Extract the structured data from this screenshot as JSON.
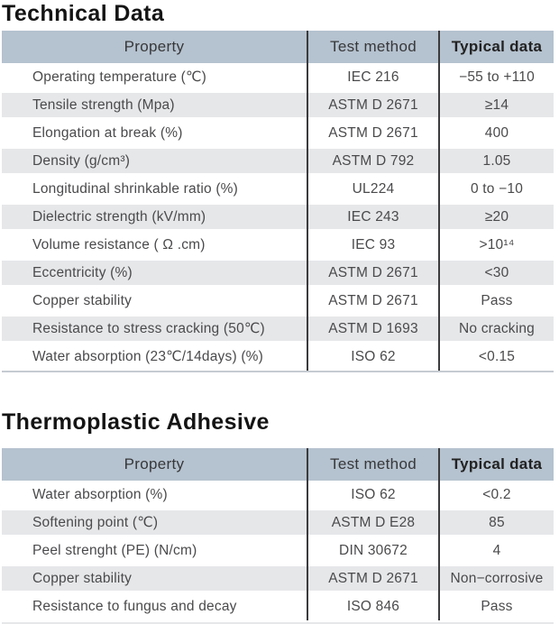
{
  "colors": {
    "header_bg": "#b5c2cf",
    "alt_row_band": "#e6e7e9",
    "row_bg": "#ffffff",
    "divider": "#3b3b3d",
    "text": "#4a4a4c",
    "title": "#141414",
    "table_bottom_hairline": "#c6cbd1"
  },
  "sections": [
    {
      "title": "Technical Data",
      "columns": [
        "Property",
        "Test method",
        "Typical data"
      ],
      "rows": [
        {
          "property": "Operating temperature (℃)",
          "test_method": "IEC 216",
          "typical_data": "−55 to +110"
        },
        {
          "property": "Tensile strength (Mpa)",
          "test_method": "ASTM D 2671",
          "typical_data": "≥14"
        },
        {
          "property": "Elongation at break (%)",
          "test_method": "ASTM D 2671",
          "typical_data": "400"
        },
        {
          "property": "Density (g/cm³)",
          "test_method": "ASTM D 792",
          "typical_data": "1.05"
        },
        {
          "property": "Longitudinal shrinkable ratio (%)",
          "test_method": "UL224",
          "typical_data": "0 to −10"
        },
        {
          "property": "Dielectric strength (kV/mm)",
          "test_method": "IEC 243",
          "typical_data": "≥20"
        },
        {
          "property": "Volume resistance ( Ω .cm)",
          "test_method": "IEC 93",
          "typical_data": ">10¹⁴"
        },
        {
          "property": "Eccentricity (%)",
          "test_method": "ASTM D 2671",
          "typical_data": "<30"
        },
        {
          "property": "Copper stability",
          "test_method": "ASTM D 2671",
          "typical_data": "Pass"
        },
        {
          "property": "Resistance to stress cracking (50℃)",
          "test_method": "ASTM D 1693",
          "typical_data": "No cracking"
        },
        {
          "property": "Water absorption (23℃/14days) (%)",
          "test_method": "ISO 62",
          "typical_data": "<0.15"
        }
      ]
    },
    {
      "title": "Thermoplastic Adhesive",
      "columns": [
        "Property",
        "Test method",
        "Typical data"
      ],
      "rows": [
        {
          "property": "Water absorption (%)",
          "test_method": "ISO 62",
          "typical_data": "<0.2"
        },
        {
          "property": "Softening point (℃)",
          "test_method": "ASTM D E28",
          "typical_data": "85"
        },
        {
          "property": "Peel strenght (PE) (N/cm)",
          "test_method": "DIN 30672",
          "typical_data": "4"
        },
        {
          "property": "Copper stability",
          "test_method": "ASTM D 2671",
          "typical_data": "Non−corrosive"
        },
        {
          "property": "Resistance to fungus and decay",
          "test_method": "ISO 846",
          "typical_data": "Pass"
        }
      ]
    }
  ]
}
